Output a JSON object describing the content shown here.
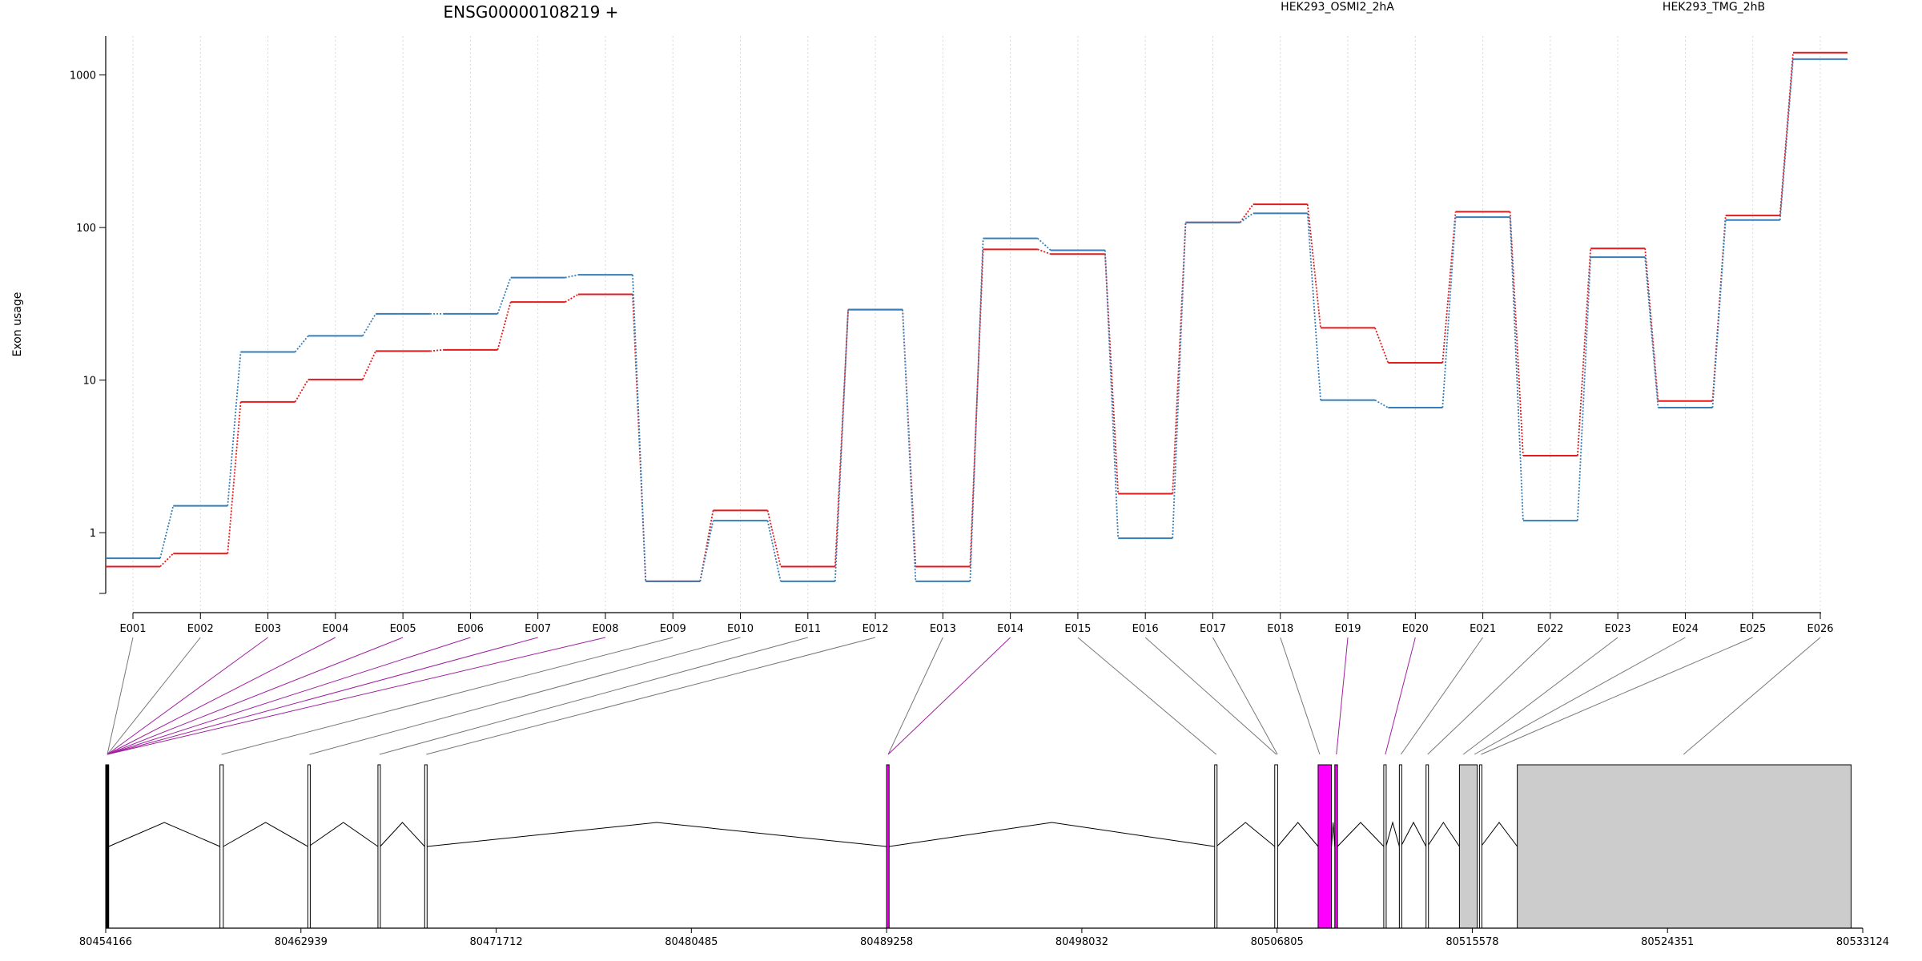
{
  "chart_data": {
    "type": "line",
    "title": "ENSG00000108219 +",
    "ylabel": "Exon usage",
    "xlabel": "",
    "yscale": "log",
    "ylim": [
      0.4,
      1800
    ],
    "y_ticks": [
      1,
      10,
      100,
      1000
    ],
    "y_tick_labels": [
      "1",
      "10",
      "100",
      "1000"
    ],
    "grid": "vertical dotted lines at each exon",
    "legend_placement": "top",
    "categories": [
      "E001",
      "E002",
      "E003",
      "E004",
      "E005",
      "E006",
      "E007",
      "E008",
      "E009",
      "E010",
      "E011",
      "E012",
      "E013",
      "E014",
      "E015",
      "E016",
      "E017",
      "E018",
      "E019",
      "E020",
      "E021",
      "E022",
      "E023",
      "E024",
      "E025",
      "E026"
    ],
    "series": [
      {
        "name": "HEK293_OSMI2_2hA",
        "color": "#e41a1c",
        "values": [
          0.6,
          0.73,
          7.2,
          10.1,
          15.5,
          15.8,
          32.5,
          36.5,
          0.48,
          1.4,
          0.6,
          29,
          0.6,
          72,
          67,
          1.8,
          108,
          142,
          22,
          13,
          127,
          3.2,
          73,
          7.3,
          120,
          1400
        ]
      },
      {
        "name": "HEK293_TMG_2hB",
        "color": "#377eb8",
        "values": [
          0.68,
          1.5,
          15.3,
          19.5,
          27.2,
          27.2,
          47,
          49,
          0.48,
          1.2,
          0.48,
          29,
          0.48,
          85,
          71,
          0.92,
          108,
          124,
          7.4,
          6.6,
          117,
          1.2,
          64,
          6.6,
          112,
          1270
        ]
      }
    ],
    "genomic_axis": {
      "ticks": [
        "80454166",
        "80462939",
        "80471712",
        "80480485",
        "80489258",
        "80498032",
        "80506805",
        "80515578",
        "80524351",
        "80533124"
      ],
      "range": [
        80454166,
        80533124
      ],
      "highlight_color": "#ff00ff",
      "exon_fill": "#cccccc",
      "exon_blocks": [
        {
          "start": 80454166,
          "end": 80454300,
          "fill": "#000000"
        },
        {
          "start": 80459300,
          "end": 80459450,
          "fill": "#ffffff"
        },
        {
          "start": 80463250,
          "end": 80463290,
          "fill": "#ffffff"
        },
        {
          "start": 80466400,
          "end": 80466500,
          "fill": "#ffffff"
        },
        {
          "start": 80468500,
          "end": 80468600,
          "fill": "#ffffff"
        },
        {
          "start": 80489258,
          "end": 80489370,
          "fill": "#ff00ff"
        },
        {
          "start": 80504000,
          "end": 80504070,
          "fill": "#ffffff"
        },
        {
          "start": 80506700,
          "end": 80506830,
          "fill": "#ffffff"
        },
        {
          "start": 80508650,
          "end": 80509250,
          "fill": "#ff00ff"
        },
        {
          "start": 80509400,
          "end": 80509520,
          "fill": "#ff00ff"
        },
        {
          "start": 80511600,
          "end": 80511700,
          "fill": "#ffffff"
        },
        {
          "start": 80512300,
          "end": 80512370,
          "fill": "#ffffff"
        },
        {
          "start": 80513500,
          "end": 80513560,
          "fill": "#ffffff"
        },
        {
          "start": 80515000,
          "end": 80515800,
          "fill": "#cccccc"
        },
        {
          "start": 80515900,
          "end": 80515970,
          "fill": "#ffffff"
        },
        {
          "start": 80517600,
          "end": 80532600,
          "fill": "#cccccc"
        }
      ],
      "exon_positions": [
        80454166,
        80454166,
        80454166,
        80454166,
        80454166,
        80454166,
        80454166,
        80454166,
        80459300,
        80463250,
        80466400,
        80468500,
        80489258,
        80489258,
        80504000,
        80506700,
        80506750,
        80508650,
        80509400,
        80511600,
        80512300,
        80513500,
        80515100,
        80515600,
        80515900,
        80525000
      ],
      "highlighted_exons": [
        "E003",
        "E004",
        "E005",
        "E006",
        "E007",
        "E008",
        "E014",
        "E019",
        "E020"
      ]
    }
  }
}
